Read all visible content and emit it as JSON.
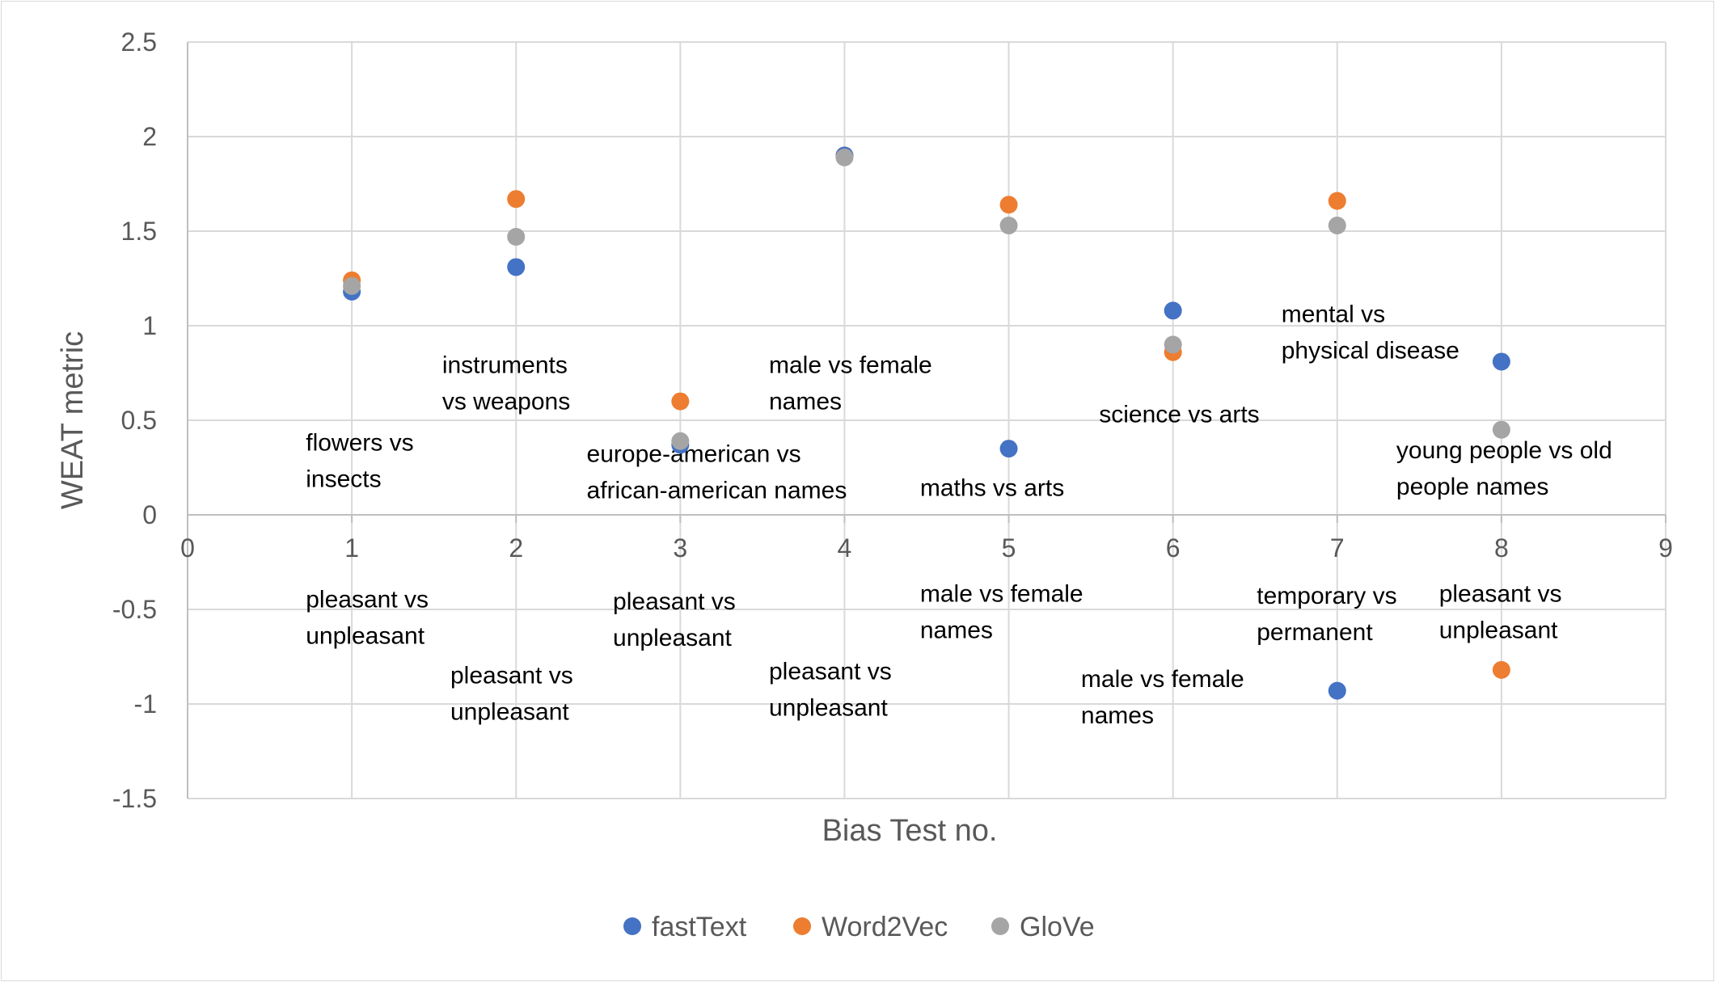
{
  "chart_data": {
    "type": "scatter",
    "xlabel": "Bias Test no.",
    "ylabel": "WEAT metric",
    "xlim": [
      0,
      9
    ],
    "ylim": [
      -1.5,
      2.5
    ],
    "x_ticks": [
      0,
      1,
      2,
      3,
      4,
      5,
      6,
      7,
      8,
      9
    ],
    "y_ticks": [
      2.5,
      2,
      1.5,
      1,
      0.5,
      0,
      -0.5,
      -1,
      -1.5
    ],
    "grid": true,
    "legend_position": "bottom",
    "series": [
      {
        "name": "fastText",
        "color": "#4472C4",
        "points": [
          [
            1,
            1.18
          ],
          [
            2,
            1.31
          ],
          [
            3,
            0.37
          ],
          [
            4,
            1.9
          ],
          [
            5,
            0.35
          ],
          [
            6,
            1.08
          ],
          [
            7,
            -0.93
          ],
          [
            8,
            0.81
          ]
        ]
      },
      {
        "name": "Word2Vec",
        "color": "#ED7D31",
        "points": [
          [
            1,
            1.24
          ],
          [
            2,
            1.67
          ],
          [
            3,
            0.6
          ],
          [
            4,
            1.9
          ],
          [
            5,
            1.64
          ],
          [
            6,
            0.86
          ],
          [
            7,
            1.66
          ],
          [
            8,
            -0.82
          ]
        ]
      },
      {
        "name": "GloVe",
        "color": "#A5A5A5",
        "points": [
          [
            1,
            1.21
          ],
          [
            2,
            1.47
          ],
          [
            3,
            0.39
          ],
          [
            4,
            1.89
          ],
          [
            5,
            1.53
          ],
          [
            6,
            0.9
          ],
          [
            7,
            1.53
          ],
          [
            8,
            0.45
          ]
        ]
      }
    ],
    "annotations": [
      {
        "x": 0.72,
        "y": 0.34,
        "lines": [
          "flowers vs",
          "insects"
        ]
      },
      {
        "x": 0.72,
        "y": -0.49,
        "lines": [
          "pleasant vs",
          "unpleasant"
        ]
      },
      {
        "x": 1.55,
        "y": 0.75,
        "lines": [
          "instruments",
          "vs weapons"
        ]
      },
      {
        "x": 1.6,
        "y": -0.89,
        "lines": [
          "pleasant vs",
          "unpleasant"
        ]
      },
      {
        "x": 2.43,
        "y": 0.28,
        "lines": [
          "europe-american vs",
          "african-american names"
        ]
      },
      {
        "x": 2.59,
        "y": -0.5,
        "lines": [
          "pleasant vs",
          "unpleasant"
        ]
      },
      {
        "x": 3.54,
        "y": 0.75,
        "lines": [
          "male vs female",
          "names"
        ]
      },
      {
        "x": 3.54,
        "y": -0.87,
        "lines": [
          "pleasant vs",
          "unpleasant"
        ]
      },
      {
        "x": 4.46,
        "y": 0.1,
        "lines": [
          "maths vs arts"
        ]
      },
      {
        "x": 4.46,
        "y": -0.46,
        "lines": [
          "male vs female",
          "names"
        ]
      },
      {
        "x": 5.55,
        "y": 0.49,
        "lines": [
          "science vs arts"
        ]
      },
      {
        "x": 5.44,
        "y": -0.91,
        "lines": [
          "male vs female",
          "names"
        ]
      },
      {
        "x": 6.66,
        "y": 1.02,
        "lines": [
          "mental vs",
          "physical disease"
        ]
      },
      {
        "x": 6.51,
        "y": -0.47,
        "lines": [
          "temporary vs",
          "permanent"
        ]
      },
      {
        "x": 7.36,
        "y": 0.3,
        "lines": [
          "young people vs old",
          "people names"
        ]
      },
      {
        "x": 7.62,
        "y": -0.46,
        "lines": [
          "pleasant vs",
          "unpleasant"
        ]
      }
    ]
  }
}
